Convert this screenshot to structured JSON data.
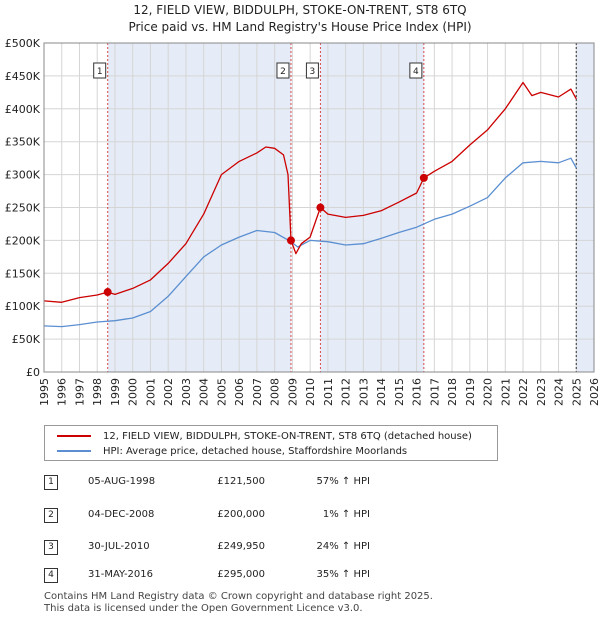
{
  "title": "12, FIELD VIEW, BIDDULPH, STOKE-ON-TRENT, ST8 6TQ",
  "subtitle": "Price paid vs. HM Land Registry's House Price Index (HPI)",
  "colors": {
    "property": "#cc0000",
    "hpi": "#5b8fd1",
    "marker": "#cc0000",
    "shade": "#dce6f4",
    "vline": "#cc0000"
  },
  "chart_data": {
    "type": "line",
    "title": "12, FIELD VIEW, BIDDULPH, STOKE-ON-TRENT, ST8 6TQ",
    "subtitle": "Price paid vs. HM Land Registry's House Price Index (HPI)",
    "xlim": [
      1995,
      2026
    ],
    "ylim": [
      0,
      500000
    ],
    "x_ticks": [
      1995,
      1996,
      1997,
      1998,
      1999,
      2000,
      2001,
      2002,
      2003,
      2004,
      2005,
      2006,
      2007,
      2008,
      2009,
      2010,
      2011,
      2012,
      2013,
      2014,
      2015,
      2016,
      2017,
      2018,
      2019,
      2020,
      2021,
      2022,
      2023,
      2024,
      2025,
      2026
    ],
    "y_ticks": [
      0,
      50000,
      100000,
      150000,
      200000,
      250000,
      300000,
      350000,
      400000,
      450000,
      500000
    ],
    "y_tick_labels": [
      "£0",
      "£50K",
      "£100K",
      "£150K",
      "£200K",
      "£250K",
      "£300K",
      "£350K",
      "£400K",
      "£450K",
      "£500K"
    ],
    "shaded_spans": [
      [
        1998.6,
        2008.92
      ],
      [
        2010.58,
        2016.41
      ],
      [
        2025.0,
        2026.0
      ]
    ],
    "series": [
      {
        "name": "12, FIELD VIEW, BIDDULPH, STOKE-ON-TRENT, ST8 6TQ (detached house)",
        "color": "#cc0000",
        "points": [
          [
            1995,
            108000
          ],
          [
            1996,
            106000
          ],
          [
            1997,
            113000
          ],
          [
            1998,
            117000
          ],
          [
            1998.59,
            121500
          ],
          [
            1999,
            118000
          ],
          [
            2000,
            127000
          ],
          [
            2001,
            140000
          ],
          [
            2002,
            165000
          ],
          [
            2003,
            195000
          ],
          [
            2004,
            240000
          ],
          [
            2005,
            300000
          ],
          [
            2006,
            320000
          ],
          [
            2007,
            333000
          ],
          [
            2007.5,
            342000
          ],
          [
            2008,
            340000
          ],
          [
            2008.5,
            330000
          ],
          [
            2008.75,
            300000
          ],
          [
            2008.92,
            200000
          ],
          [
            2009.2,
            180000
          ],
          [
            2009.5,
            195000
          ],
          [
            2010,
            205000
          ],
          [
            2010.58,
            249950
          ],
          [
            2011,
            240000
          ],
          [
            2012,
            235000
          ],
          [
            2013,
            238000
          ],
          [
            2014,
            245000
          ],
          [
            2015,
            258000
          ],
          [
            2016,
            272000
          ],
          [
            2016.41,
            295000
          ],
          [
            2017,
            305000
          ],
          [
            2018,
            320000
          ],
          [
            2019,
            345000
          ],
          [
            2020,
            368000
          ],
          [
            2021,
            400000
          ],
          [
            2022,
            440000
          ],
          [
            2022.5,
            420000
          ],
          [
            2023,
            425000
          ],
          [
            2024,
            418000
          ],
          [
            2024.7,
            430000
          ],
          [
            2025,
            415000
          ]
        ]
      },
      {
        "name": "HPI: Average price, detached house, Staffordshire Moorlands",
        "color": "#5b8fd1",
        "points": [
          [
            1995,
            70000
          ],
          [
            1996,
            69000
          ],
          [
            1997,
            72000
          ],
          [
            1998,
            76000
          ],
          [
            1999,
            78000
          ],
          [
            2000,
            82000
          ],
          [
            2001,
            92000
          ],
          [
            2002,
            115000
          ],
          [
            2003,
            145000
          ],
          [
            2004,
            175000
          ],
          [
            2005,
            193000
          ],
          [
            2006,
            205000
          ],
          [
            2007,
            215000
          ],
          [
            2008,
            212000
          ],
          [
            2008.92,
            198000
          ],
          [
            2009.3,
            190000
          ],
          [
            2010,
            200000
          ],
          [
            2011,
            198000
          ],
          [
            2012,
            193000
          ],
          [
            2013,
            195000
          ],
          [
            2014,
            203000
          ],
          [
            2015,
            212000
          ],
          [
            2016,
            220000
          ],
          [
            2017,
            232000
          ],
          [
            2018,
            240000
          ],
          [
            2019,
            252000
          ],
          [
            2020,
            265000
          ],
          [
            2021,
            295000
          ],
          [
            2022,
            318000
          ],
          [
            2023,
            320000
          ],
          [
            2024,
            318000
          ],
          [
            2024.7,
            325000
          ],
          [
            2025,
            310000
          ]
        ]
      }
    ],
    "sale_markers": [
      {
        "label": "1",
        "x": 1998.59,
        "y": 121500
      },
      {
        "label": "2",
        "x": 2008.92,
        "y": 200000
      },
      {
        "label": "3",
        "x": 2010.58,
        "y": 249950
      },
      {
        "label": "4",
        "x": 2016.41,
        "y": 295000
      }
    ]
  },
  "legend": {
    "property": "12, FIELD VIEW, BIDDULPH, STOKE-ON-TRENT, ST8 6TQ (detached house)",
    "hpi": "HPI: Average price, detached house, Staffordshire Moorlands"
  },
  "sales": [
    {
      "num": "1",
      "date": "05-AUG-1998",
      "price": "£121,500",
      "hpi": "57% ↑ HPI"
    },
    {
      "num": "2",
      "date": "04-DEC-2008",
      "price": "£200,000",
      "hpi": "1% ↑ HPI"
    },
    {
      "num": "3",
      "date": "30-JUL-2010",
      "price": "£249,950",
      "hpi": "24% ↑ HPI"
    },
    {
      "num": "4",
      "date": "31-MAY-2016",
      "price": "£295,000",
      "hpi": "35% ↑ HPI"
    }
  ],
  "footer": {
    "line1": "Contains HM Land Registry data © Crown copyright and database right 2025.",
    "line2": "This data is licensed under the Open Government Licence v3.0."
  }
}
